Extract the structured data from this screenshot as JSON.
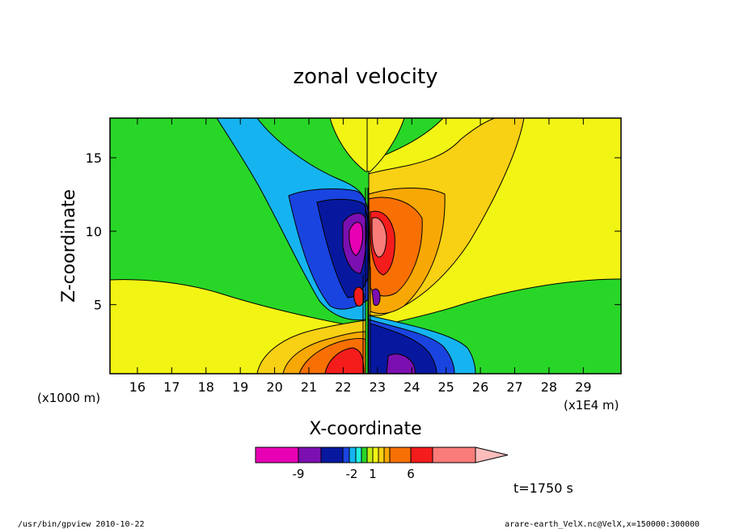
{
  "chart_data": {
    "type": "heatmap",
    "subtype": "filled-contour",
    "title": "zonal velocity",
    "xlabel": "X-coordinate",
    "ylabel": "Z-coordinate",
    "x_unit_label": "(x1E4 m)",
    "y_unit_label": "(x1000 m)",
    "xlim": [
      15.2,
      30.1
    ],
    "ylim": [
      0.3,
      17.7
    ],
    "x_ticks": [
      "16",
      "17",
      "18",
      "19",
      "20",
      "21",
      "22",
      "23",
      "24",
      "25",
      "26",
      "27",
      "28",
      "29"
    ],
    "y_ticks": [
      "5",
      "10",
      "15"
    ],
    "colorbar": {
      "colors": [
        "#e800b4",
        "#7c0fb0",
        "#07189e",
        "#1a44e0",
        "#15b4f0",
        "#1ef0e0",
        "#28d628",
        "#c4ec14",
        "#f2f414",
        "#f8d014",
        "#f8a804",
        "#f87004",
        "#f51c1c",
        "#fa7c78",
        "#fcbcbc"
      ],
      "tick_labels": [
        "-9",
        "-2",
        "1",
        "6"
      ]
    },
    "annotation": "t=1750 s"
  },
  "footer": {
    "left": "/usr/bin/gpview   2010-10-22",
    "right": "arare-earth_VelX.nc@VelX,x=150000:300000"
  }
}
